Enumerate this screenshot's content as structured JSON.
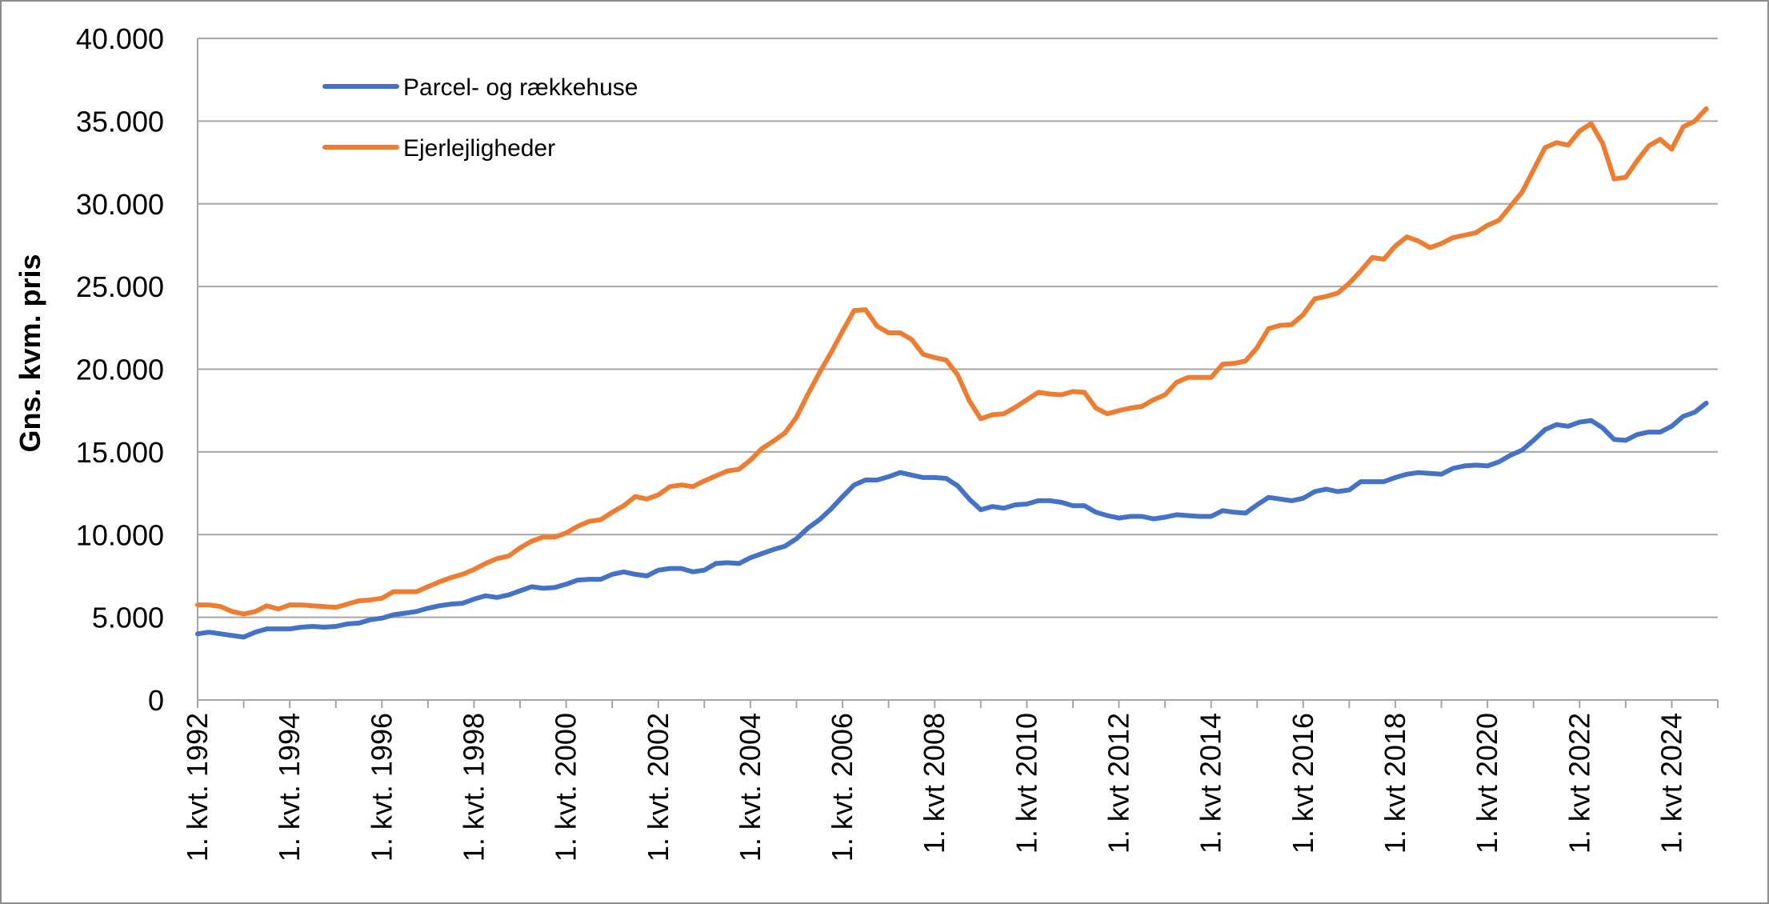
{
  "chart_data": {
    "type": "line",
    "title": "",
    "xlabel": "",
    "ylabel": "Gns. kvm. pris",
    "ylim": [
      0,
      40000
    ],
    "yticks": [
      0,
      5000,
      10000,
      15000,
      20000,
      25000,
      30000,
      35000,
      40000
    ],
    "ytick_labels": [
      "0",
      "5.000",
      "10.000",
      "15.000",
      "20.000",
      "25.000",
      "30.000",
      "35.000",
      "40.000"
    ],
    "x_start": "1992Q1",
    "x_end": "2025Q1",
    "xtick_labels": [
      "1. kvt. 1992",
      "1. kvt. 1994",
      "1. kvt. 1996",
      "1. kvt. 1998",
      "1. kvt. 2000",
      "1. kvt. 2002",
      "1. kvt. 2004",
      "1. kvt. 2006",
      "1. kvt 2008",
      "1. kvt 2010",
      "1. kvt 2012",
      "1. kvt 2014",
      "1. kvt 2016",
      "1. kvt 2018",
      "1. kvt 2020",
      "1. kvt 2022",
      "1. kvt 2024"
    ],
    "grid": true,
    "legend_position": "top-left",
    "series": [
      {
        "name": "Parcel- og rækkehuse",
        "color": "#4472C4",
        "points": [
          [
            1992.0,
            4000
          ],
          [
            1992.25,
            4100
          ],
          [
            1992.5,
            4000
          ],
          [
            1992.75,
            3900
          ],
          [
            1993.0,
            3800
          ],
          [
            1993.25,
            4100
          ],
          [
            1993.5,
            4300
          ],
          [
            1993.75,
            4300
          ],
          [
            1994.0,
            4300
          ],
          [
            1994.25,
            4400
          ],
          [
            1994.5,
            4450
          ],
          [
            1994.75,
            4400
          ],
          [
            1995.0,
            4450
          ],
          [
            1995.25,
            4600
          ],
          [
            1995.5,
            4650
          ],
          [
            1995.75,
            4850
          ],
          [
            1996.0,
            4950
          ],
          [
            1996.25,
            5150
          ],
          [
            1996.5,
            5250
          ],
          [
            1996.75,
            5350
          ],
          [
            1997.0,
            5550
          ],
          [
            1997.25,
            5700
          ],
          [
            1997.5,
            5800
          ],
          [
            1997.75,
            5850
          ],
          [
            1998.0,
            6100
          ],
          [
            1998.25,
            6300
          ],
          [
            1998.5,
            6200
          ],
          [
            1998.75,
            6350
          ],
          [
            1999.0,
            6600
          ],
          [
            1999.25,
            6850
          ],
          [
            1999.5,
            6750
          ],
          [
            1999.75,
            6800
          ],
          [
            2000.0,
            7000
          ],
          [
            2000.25,
            7250
          ],
          [
            2000.5,
            7300
          ],
          [
            2000.75,
            7300
          ],
          [
            2001.0,
            7600
          ],
          [
            2001.25,
            7750
          ],
          [
            2001.5,
            7600
          ],
          [
            2001.75,
            7500
          ],
          [
            2002.0,
            7850
          ],
          [
            2002.25,
            7950
          ],
          [
            2002.5,
            7950
          ],
          [
            2002.75,
            7750
          ],
          [
            2003.0,
            7850
          ],
          [
            2003.25,
            8250
          ],
          [
            2003.5,
            8300
          ],
          [
            2003.75,
            8250
          ],
          [
            2004.0,
            8600
          ],
          [
            2004.25,
            8850
          ],
          [
            2004.5,
            9100
          ],
          [
            2004.75,
            9300
          ],
          [
            2005.0,
            9750
          ],
          [
            2005.25,
            10400
          ],
          [
            2005.5,
            10900
          ],
          [
            2005.75,
            11550
          ],
          [
            2006.0,
            12300
          ],
          [
            2006.25,
            13000
          ],
          [
            2006.5,
            13300
          ],
          [
            2006.75,
            13300
          ],
          [
            2007.0,
            13500
          ],
          [
            2007.25,
            13750
          ],
          [
            2007.5,
            13600
          ],
          [
            2007.75,
            13450
          ],
          [
            2008.0,
            13450
          ],
          [
            2008.25,
            13400
          ],
          [
            2008.5,
            12950
          ],
          [
            2008.75,
            12150
          ],
          [
            2009.0,
            11500
          ],
          [
            2009.25,
            11700
          ],
          [
            2009.5,
            11600
          ],
          [
            2009.75,
            11800
          ],
          [
            2010.0,
            11850
          ],
          [
            2010.25,
            12050
          ],
          [
            2010.5,
            12050
          ],
          [
            2010.75,
            11950
          ],
          [
            2011.0,
            11750
          ],
          [
            2011.25,
            11750
          ],
          [
            2011.5,
            11350
          ],
          [
            2011.75,
            11150
          ],
          [
            2012.0,
            11000
          ],
          [
            2012.25,
            11100
          ],
          [
            2012.5,
            11100
          ],
          [
            2012.75,
            10950
          ],
          [
            2013.0,
            11050
          ],
          [
            2013.25,
            11200
          ],
          [
            2013.5,
            11150
          ],
          [
            2013.75,
            11100
          ],
          [
            2014.0,
            11100
          ],
          [
            2014.25,
            11450
          ],
          [
            2014.5,
            11350
          ],
          [
            2014.75,
            11300
          ],
          [
            2015.0,
            11800
          ],
          [
            2015.25,
            12250
          ],
          [
            2015.5,
            12150
          ],
          [
            2015.75,
            12050
          ],
          [
            2016.0,
            12200
          ],
          [
            2016.25,
            12600
          ],
          [
            2016.5,
            12750
          ],
          [
            2016.75,
            12600
          ],
          [
            2017.0,
            12700
          ],
          [
            2017.25,
            13200
          ],
          [
            2017.5,
            13200
          ],
          [
            2017.75,
            13200
          ],
          [
            2018.0,
            13450
          ],
          [
            2018.25,
            13650
          ],
          [
            2018.5,
            13750
          ],
          [
            2018.75,
            13700
          ],
          [
            2019.0,
            13650
          ],
          [
            2019.25,
            14000
          ],
          [
            2019.5,
            14150
          ],
          [
            2019.75,
            14200
          ],
          [
            2020.0,
            14150
          ],
          [
            2020.25,
            14400
          ],
          [
            2020.5,
            14800
          ],
          [
            2020.75,
            15100
          ],
          [
            2021.0,
            15700
          ],
          [
            2021.25,
            16350
          ],
          [
            2021.5,
            16650
          ],
          [
            2021.75,
            16550
          ],
          [
            2022.0,
            16800
          ],
          [
            2022.25,
            16900
          ],
          [
            2022.5,
            16450
          ],
          [
            2022.75,
            15750
          ],
          [
            2023.0,
            15700
          ],
          [
            2023.25,
            16050
          ],
          [
            2023.5,
            16200
          ],
          [
            2023.75,
            16200
          ],
          [
            2024.0,
            16550
          ],
          [
            2024.25,
            17150
          ],
          [
            2024.5,
            17400
          ],
          [
            2024.75,
            17950
          ]
        ]
      },
      {
        "name": "Ejerlejligheder",
        "color": "#ED7D31",
        "points": [
          [
            1992.0,
            5750
          ],
          [
            1992.25,
            5750
          ],
          [
            1992.5,
            5650
          ],
          [
            1992.75,
            5350
          ],
          [
            1993.0,
            5200
          ],
          [
            1993.25,
            5350
          ],
          [
            1993.5,
            5700
          ],
          [
            1993.75,
            5500
          ],
          [
            1994.0,
            5750
          ],
          [
            1994.25,
            5750
          ],
          [
            1994.5,
            5700
          ],
          [
            1994.75,
            5650
          ],
          [
            1995.0,
            5600
          ],
          [
            1995.25,
            5800
          ],
          [
            1995.5,
            6000
          ],
          [
            1995.75,
            6050
          ],
          [
            1996.0,
            6150
          ],
          [
            1996.25,
            6550
          ],
          [
            1996.5,
            6550
          ],
          [
            1996.75,
            6550
          ],
          [
            1997.0,
            6850
          ],
          [
            1997.25,
            7150
          ],
          [
            1997.5,
            7400
          ],
          [
            1997.75,
            7600
          ],
          [
            1998.0,
            7900
          ],
          [
            1998.25,
            8250
          ],
          [
            1998.5,
            8550
          ],
          [
            1998.75,
            8700
          ],
          [
            1999.0,
            9200
          ],
          [
            1999.25,
            9600
          ],
          [
            1999.5,
            9850
          ],
          [
            1999.75,
            9850
          ],
          [
            2000.0,
            10100
          ],
          [
            2000.25,
            10500
          ],
          [
            2000.5,
            10800
          ],
          [
            2000.75,
            10900
          ],
          [
            2001.0,
            11350
          ],
          [
            2001.25,
            11750
          ],
          [
            2001.5,
            12300
          ],
          [
            2001.75,
            12150
          ],
          [
            2002.0,
            12400
          ],
          [
            2002.25,
            12900
          ],
          [
            2002.5,
            13000
          ],
          [
            2002.75,
            12900
          ],
          [
            2003.0,
            13250
          ],
          [
            2003.25,
            13550
          ],
          [
            2003.5,
            13850
          ],
          [
            2003.75,
            13950
          ],
          [
            2004.0,
            14500
          ],
          [
            2004.25,
            15200
          ],
          [
            2004.5,
            15650
          ],
          [
            2004.75,
            16150
          ],
          [
            2005.0,
            17100
          ],
          [
            2005.25,
            18500
          ],
          [
            2005.5,
            19800
          ],
          [
            2005.75,
            21000
          ],
          [
            2006.0,
            22300
          ],
          [
            2006.25,
            23550
          ],
          [
            2006.5,
            23600
          ],
          [
            2006.75,
            22600
          ],
          [
            2007.0,
            22200
          ],
          [
            2007.25,
            22200
          ],
          [
            2007.5,
            21800
          ],
          [
            2007.75,
            20900
          ],
          [
            2008.0,
            20700
          ],
          [
            2008.25,
            20550
          ],
          [
            2008.5,
            19650
          ],
          [
            2008.75,
            18100
          ],
          [
            2009.0,
            17000
          ],
          [
            2009.25,
            17250
          ],
          [
            2009.5,
            17300
          ],
          [
            2009.75,
            17700
          ],
          [
            2010.0,
            18150
          ],
          [
            2010.25,
            18600
          ],
          [
            2010.5,
            18500
          ],
          [
            2010.75,
            18450
          ],
          [
            2011.0,
            18650
          ],
          [
            2011.25,
            18600
          ],
          [
            2011.5,
            17650
          ],
          [
            2011.75,
            17300
          ],
          [
            2012.0,
            17500
          ],
          [
            2012.25,
            17650
          ],
          [
            2012.5,
            17750
          ],
          [
            2012.75,
            18150
          ],
          [
            2013.0,
            18450
          ],
          [
            2013.25,
            19200
          ],
          [
            2013.5,
            19500
          ],
          [
            2013.75,
            19500
          ],
          [
            2014.0,
            19500
          ],
          [
            2014.25,
            20300
          ],
          [
            2014.5,
            20350
          ],
          [
            2014.75,
            20500
          ],
          [
            2015.0,
            21300
          ],
          [
            2015.25,
            22450
          ],
          [
            2015.5,
            22650
          ],
          [
            2015.75,
            22700
          ],
          [
            2016.0,
            23300
          ],
          [
            2016.25,
            24250
          ],
          [
            2016.5,
            24400
          ],
          [
            2016.75,
            24600
          ],
          [
            2017.0,
            25200
          ],
          [
            2017.25,
            25950
          ],
          [
            2017.5,
            26750
          ],
          [
            2017.75,
            26650
          ],
          [
            2018.0,
            27450
          ],
          [
            2018.25,
            28000
          ],
          [
            2018.5,
            27750
          ],
          [
            2018.75,
            27350
          ],
          [
            2019.0,
            27600
          ],
          [
            2019.25,
            27950
          ],
          [
            2019.5,
            28100
          ],
          [
            2019.75,
            28250
          ],
          [
            2020.0,
            28700
          ],
          [
            2020.25,
            29000
          ],
          [
            2020.5,
            29850
          ],
          [
            2020.75,
            30700
          ],
          [
            2021.0,
            32050
          ],
          [
            2021.25,
            33400
          ],
          [
            2021.5,
            33700
          ],
          [
            2021.75,
            33550
          ],
          [
            2022.0,
            34400
          ],
          [
            2022.25,
            34850
          ],
          [
            2022.5,
            33650
          ],
          [
            2022.75,
            31500
          ],
          [
            2023.0,
            31600
          ],
          [
            2023.25,
            32600
          ],
          [
            2023.5,
            33500
          ],
          [
            2023.75,
            33900
          ],
          [
            2024.0,
            33300
          ],
          [
            2024.25,
            34650
          ],
          [
            2024.5,
            35000
          ],
          [
            2024.75,
            35750
          ]
        ]
      }
    ]
  }
}
